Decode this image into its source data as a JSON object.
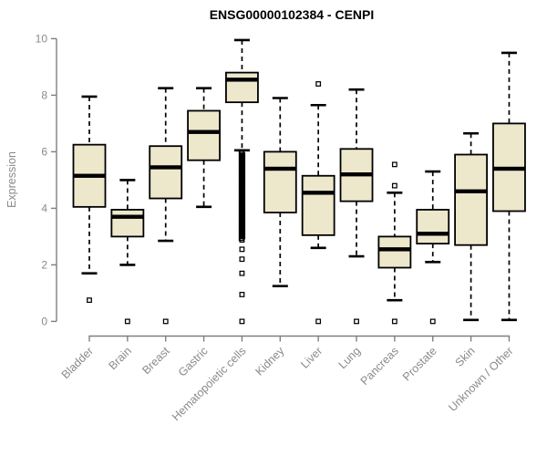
{
  "chart_data": {
    "type": "boxplot",
    "title": "ENSG00000102384 - CENPI",
    "xlabel": "",
    "ylabel": "Expression",
    "ylim": [
      0,
      10
    ],
    "yticks": [
      0,
      2,
      4,
      6,
      8,
      10
    ],
    "grid": false,
    "legend": false,
    "colors": {
      "box_fill": "#ede7cc",
      "box_stroke": "#000000",
      "median": "#000000",
      "whisker": "#000000",
      "outlier": "#000000",
      "axis": "#7f7f7f",
      "tick_label": "#8a8a8a",
      "title": "#000000",
      "background": "#ffffff"
    },
    "categories": [
      "Bladder",
      "Brain",
      "Breast",
      "Gastric",
      "Hematopoietic cells",
      "Kidney",
      "Liver",
      "Lung",
      "Pancreas",
      "Prostate",
      "Skin",
      "Unknown / Other"
    ],
    "boxes": [
      {
        "category": "Bladder",
        "whisker_low": 1.7,
        "q1": 4.05,
        "median": 5.15,
        "q3": 6.25,
        "whisker_high": 7.95,
        "outliers": [
          0.75
        ]
      },
      {
        "category": "Brain",
        "whisker_low": 2.0,
        "q1": 3.0,
        "median": 3.7,
        "q3": 3.95,
        "whisker_high": 5.0,
        "outliers": [
          0
        ]
      },
      {
        "category": "Breast",
        "whisker_low": 2.85,
        "q1": 4.35,
        "median": 5.45,
        "q3": 6.2,
        "whisker_high": 8.25,
        "outliers": [
          0
        ]
      },
      {
        "category": "Gastric",
        "whisker_low": 4.05,
        "q1": 5.7,
        "median": 6.7,
        "q3": 7.45,
        "whisker_high": 8.25,
        "outliers": []
      },
      {
        "category": "Hematopoietic cells",
        "whisker_low": 6.05,
        "q1": 7.75,
        "median": 8.55,
        "q3": 8.8,
        "whisker_high": 9.95,
        "outliers": [
          2.55,
          2.2,
          1.7,
          0.95,
          0
        ],
        "outlier_band": {
          "min": 2.85,
          "max": 6.0
        }
      },
      {
        "category": "Kidney",
        "whisker_low": 1.25,
        "q1": 3.85,
        "median": 5.4,
        "q3": 6.0,
        "whisker_high": 7.9,
        "outliers": []
      },
      {
        "category": "Liver",
        "whisker_low": 2.6,
        "q1": 3.05,
        "median": 4.55,
        "q3": 5.15,
        "whisker_high": 7.65,
        "outliers": [
          8.4,
          0
        ]
      },
      {
        "category": "Lung",
        "whisker_low": 2.3,
        "q1": 4.25,
        "median": 5.2,
        "q3": 6.1,
        "whisker_high": 8.2,
        "outliers": [
          0
        ]
      },
      {
        "category": "Pancreas",
        "whisker_low": 0.75,
        "q1": 1.9,
        "median": 2.55,
        "q3": 3.0,
        "whisker_high": 4.55,
        "outliers": [
          5.55,
          4.8,
          0
        ]
      },
      {
        "category": "Prostate",
        "whisker_low": 2.1,
        "q1": 2.75,
        "median": 3.1,
        "q3": 3.95,
        "whisker_high": 5.3,
        "outliers": [
          0
        ]
      },
      {
        "category": "Skin",
        "whisker_low": 0.05,
        "q1": 2.7,
        "median": 4.6,
        "q3": 5.9,
        "whisker_high": 6.65,
        "outliers": []
      },
      {
        "category": "Unknown / Other",
        "whisker_low": 0.05,
        "q1": 3.9,
        "median": 5.4,
        "q3": 7.0,
        "whisker_high": 9.5,
        "outliers": []
      }
    ]
  }
}
